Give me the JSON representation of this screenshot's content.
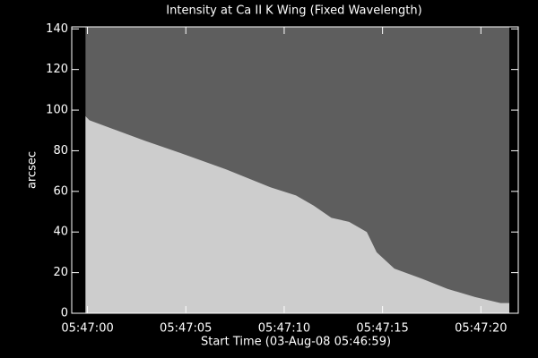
{
  "chart_data": {
    "type": "area",
    "title": "Intensity at Ca II K Wing (Fixed Wavelength)",
    "xlabel": "Start Time (03-Aug-08 05:46:59)",
    "ylabel": "arcsec",
    "x": [
      20819.9,
      20820.1,
      20821.5,
      20822.9,
      20824.7,
      20827,
      20829.3,
      20830.6,
      20831.5,
      20832.4,
      20833.3,
      20834.2,
      20834.7,
      20835.6,
      20837,
      20838.3,
      20839.7,
      20841
    ],
    "values": [
      97,
      95,
      90,
      85,
      79,
      71,
      62,
      58,
      53,
      47,
      45,
      40,
      30,
      22,
      17,
      12,
      8,
      5
    ],
    "color": "#cdcdcd",
    "background_color": "#5e5e5e",
    "xlim": [
      20819.2,
      20841.9
    ],
    "xticks": [
      {
        "value": 20820,
        "label": "05:47:00"
      },
      {
        "value": 20825,
        "label": "05:47:05"
      },
      {
        "value": 20830,
        "label": "05:47:10"
      },
      {
        "value": 20835,
        "label": "05:47:15"
      },
      {
        "value": 20840,
        "label": "05:47:20"
      }
    ],
    "ylim": [
      0,
      141
    ],
    "yticks": [
      0,
      20,
      40,
      60,
      80,
      100,
      120,
      140
    ]
  }
}
